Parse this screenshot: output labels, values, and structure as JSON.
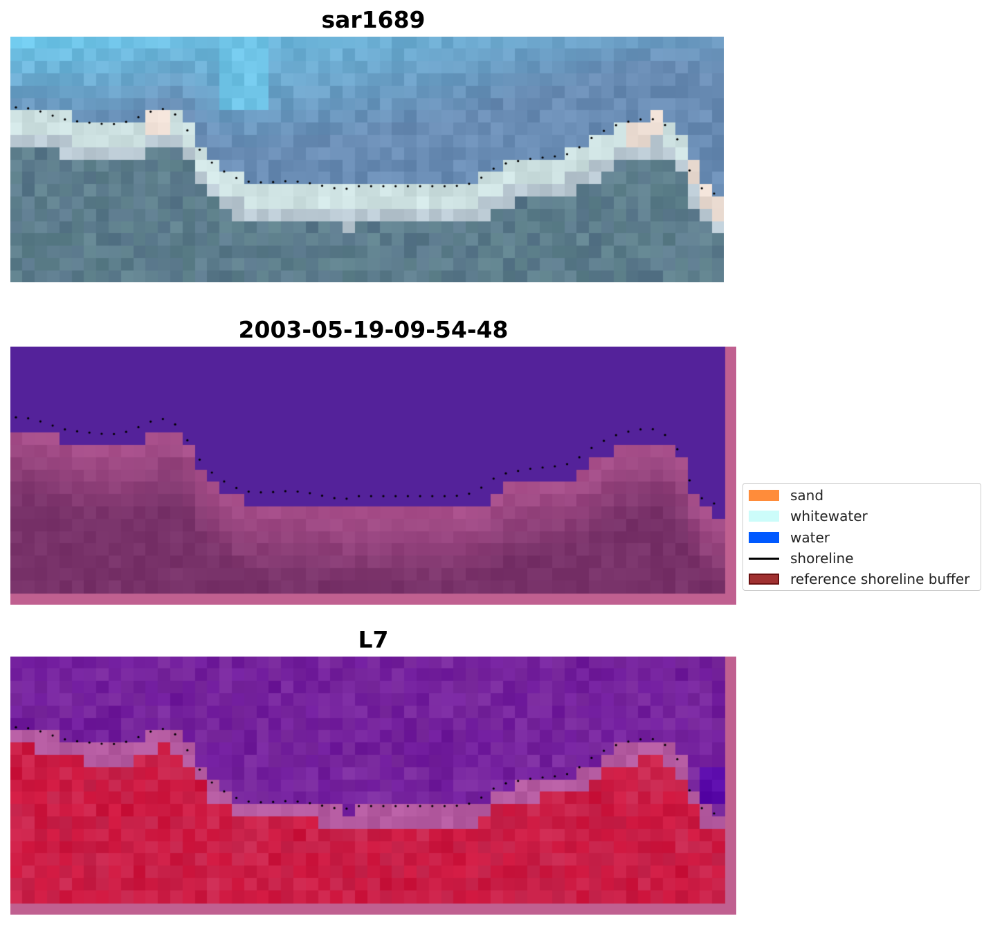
{
  "panels": [
    {
      "title": "sar1689",
      "kind": "rgb"
    },
    {
      "title": "2003-05-19-09-54-48",
      "kind": "classified"
    },
    {
      "title": "L7",
      "kind": "index"
    }
  ],
  "legend": {
    "items": [
      {
        "label": "sand",
        "color": "#ff8c3a",
        "kind": "patch"
      },
      {
        "label": "whitewater",
        "color": "#ccfcfa",
        "kind": "patch"
      },
      {
        "label": "water",
        "color": "#0059ff",
        "kind": "patch"
      },
      {
        "label": "shoreline",
        "color": "#000000",
        "kind": "line"
      },
      {
        "label": "reference shoreline buffer",
        "color": "#a03030",
        "kind": "patch"
      }
    ]
  },
  "colors": {
    "water_deep": "#54229a",
    "buffer_pink": "#c06090",
    "land_red": "#c8204a",
    "sky_blue": "#6aa8d0",
    "shoreline": "#000000"
  }
}
